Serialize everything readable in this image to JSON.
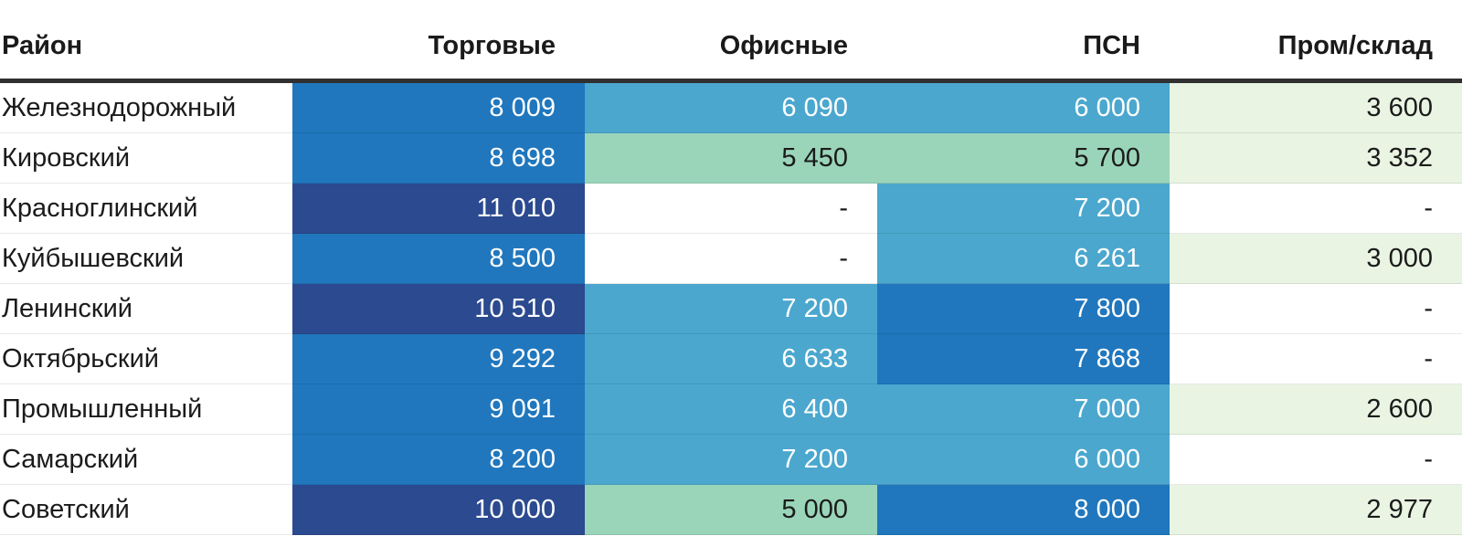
{
  "header": {
    "district": "Район",
    "columns": [
      "Торговые",
      "Офисные",
      "ПСН",
      "Пром/склад"
    ]
  },
  "missing_placeholder": "-",
  "colors": {
    "navy": "#2B4A8F",
    "blue": "#2077BD",
    "sky": "#4BA7CE",
    "green": "#9AD5B9",
    "pale": "#E9F4E2",
    "white": "#FFFFFF",
    "header_rule": "#303030",
    "text_dark": "#1B1B1B",
    "text_light": "#FFFFFF"
  },
  "rows": [
    {
      "district": "Железнодорожный",
      "cells": [
        {
          "text": "8 009",
          "color": "blue",
          "text_color": "light"
        },
        {
          "text": "6 090",
          "color": "sky",
          "text_color": "light"
        },
        {
          "text": "6 000",
          "color": "sky",
          "text_color": "light"
        },
        {
          "text": "3 600",
          "color": "pale",
          "text_color": "dark"
        }
      ]
    },
    {
      "district": "Кировский",
      "cells": [
        {
          "text": "8 698",
          "color": "blue",
          "text_color": "light"
        },
        {
          "text": "5 450",
          "color": "green",
          "text_color": "dark"
        },
        {
          "text": "5 700",
          "color": "green",
          "text_color": "dark"
        },
        {
          "text": "3 352",
          "color": "pale",
          "text_color": "dark"
        }
      ]
    },
    {
      "district": "Красноглинский",
      "cells": [
        {
          "text": "11 010",
          "color": "navy",
          "text_color": "light"
        },
        {
          "text": "-",
          "color": "white",
          "text_color": "dark"
        },
        {
          "text": "7 200",
          "color": "sky",
          "text_color": "light"
        },
        {
          "text": "-",
          "color": "white",
          "text_color": "dark"
        }
      ]
    },
    {
      "district": "Куйбышевский",
      "cells": [
        {
          "text": "8 500",
          "color": "blue",
          "text_color": "light"
        },
        {
          "text": "-",
          "color": "white",
          "text_color": "dark"
        },
        {
          "text": "6 261",
          "color": "sky",
          "text_color": "light"
        },
        {
          "text": "3 000",
          "color": "pale",
          "text_color": "dark"
        }
      ]
    },
    {
      "district": "Ленинский",
      "cells": [
        {
          "text": "10 510",
          "color": "navy",
          "text_color": "light"
        },
        {
          "text": "7 200",
          "color": "sky",
          "text_color": "light"
        },
        {
          "text": "7 800",
          "color": "blue",
          "text_color": "light"
        },
        {
          "text": "-",
          "color": "white",
          "text_color": "dark"
        }
      ]
    },
    {
      "district": "Октябрьский",
      "cells": [
        {
          "text": "9 292",
          "color": "blue",
          "text_color": "light"
        },
        {
          "text": "6 633",
          "color": "sky",
          "text_color": "light"
        },
        {
          "text": "7 868",
          "color": "blue",
          "text_color": "light"
        },
        {
          "text": "-",
          "color": "white",
          "text_color": "dark"
        }
      ]
    },
    {
      "district": "Промышленный",
      "cells": [
        {
          "text": "9 091",
          "color": "blue",
          "text_color": "light"
        },
        {
          "text": "6 400",
          "color": "sky",
          "text_color": "light"
        },
        {
          "text": "7 000",
          "color": "sky",
          "text_color": "light"
        },
        {
          "text": "2 600",
          "color": "pale",
          "text_color": "dark"
        }
      ]
    },
    {
      "district": "Самарский",
      "cells": [
        {
          "text": "8 200",
          "color": "blue",
          "text_color": "light"
        },
        {
          "text": "7 200",
          "color": "sky",
          "text_color": "light"
        },
        {
          "text": "6 000",
          "color": "sky",
          "text_color": "light"
        },
        {
          "text": "-",
          "color": "white",
          "text_color": "dark"
        }
      ]
    },
    {
      "district": "Советский",
      "cells": [
        {
          "text": "10 000",
          "color": "navy",
          "text_color": "light"
        },
        {
          "text": "5 000",
          "color": "green",
          "text_color": "dark"
        },
        {
          "text": "8 000",
          "color": "blue",
          "text_color": "light"
        },
        {
          "text": "2 977",
          "color": "pale",
          "text_color": "dark"
        }
      ]
    }
  ],
  "chart_data": {
    "type": "heatmap",
    "rows": [
      "Железнодорожный",
      "Кировский",
      "Красноглинский",
      "Куйбышевский",
      "Ленинский",
      "Октябрьский",
      "Промышленный",
      "Самарский",
      "Советский"
    ],
    "columns": [
      "Торговые",
      "Офисные",
      "ПСН",
      "Пром/склад"
    ],
    "values": [
      [
        8009,
        6090,
        6000,
        3600
      ],
      [
        8698,
        5450,
        5700,
        3352
      ],
      [
        11010,
        null,
        7200,
        null
      ],
      [
        8500,
        null,
        6261,
        3000
      ],
      [
        10510,
        7200,
        7800,
        null
      ],
      [
        9292,
        6633,
        7868,
        null
      ],
      [
        9091,
        6400,
        7000,
        2600
      ],
      [
        8200,
        7200,
        6000,
        null
      ],
      [
        10000,
        5000,
        8000,
        2977
      ]
    ],
    "value_range": [
      2600,
      11010
    ],
    "color_scale": "green-to-blue: lowest values pale green #E9F4E2, then green #9AD5B9, sky blue #4BA7CE, blue #2077BD, highest dark navy #2B4A8F; missing values white with dash",
    "legend_position": "none",
    "grid": false
  }
}
